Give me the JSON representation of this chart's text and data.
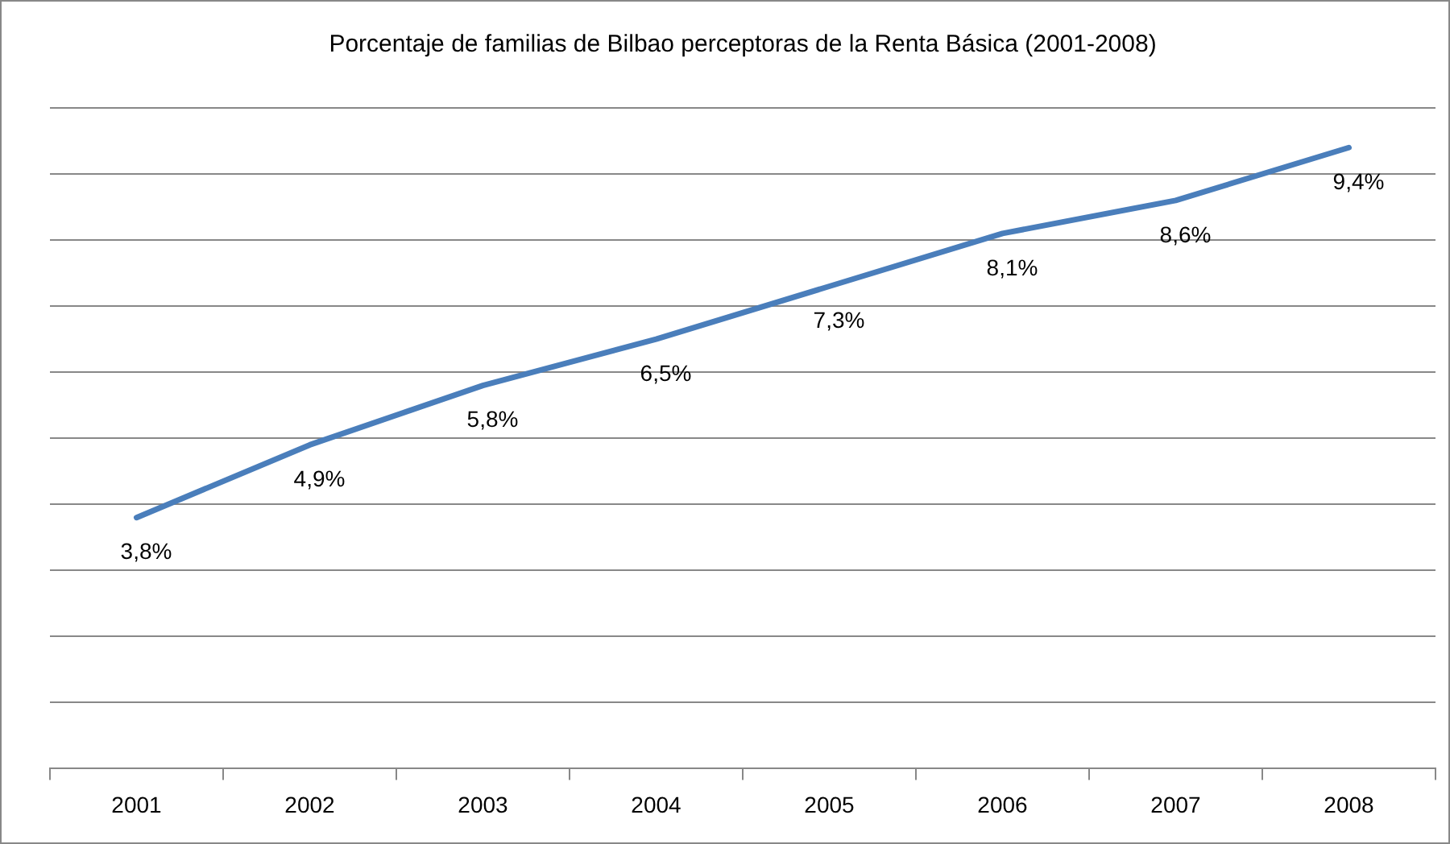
{
  "chart_data": {
    "type": "line",
    "title": "Porcentaje de familias de Bilbao perceptoras de la Renta Básica (2001-2008)",
    "categories": [
      "2001",
      "2002",
      "2003",
      "2004",
      "2005",
      "2006",
      "2007",
      "2008"
    ],
    "series": [
      {
        "color": "#4a7ebb",
        "values": [
          3.8,
          4.9,
          5.8,
          6.5,
          7.3,
          8.1,
          8.6,
          9.4
        ],
        "value_labels": [
          "3,8%",
          "4,9%",
          "5,8%",
          "6,5%",
          "7,3%",
          "8,1%",
          "8,6%",
          "9,4%"
        ]
      }
    ],
    "ylim": [
      0,
      10
    ],
    "yticks": [
      {
        "value": 0,
        "label": null
      },
      {
        "value": 1,
        "label": null
      },
      {
        "value": 2,
        "label": null
      },
      {
        "value": 3,
        "label": null
      },
      {
        "value": 4,
        "label": null
      },
      {
        "value": 5,
        "label": null
      },
      {
        "value": 6,
        "label": null
      },
      {
        "value": 7,
        "label": null
      },
      {
        "value": 8,
        "label": null
      },
      {
        "value": 9,
        "label": null
      },
      {
        "value": 10,
        "label": null
      }
    ],
    "tick_labels": "x",
    "grid": "y",
    "legend": false,
    "marker": "none",
    "line_style": "solid"
  }
}
